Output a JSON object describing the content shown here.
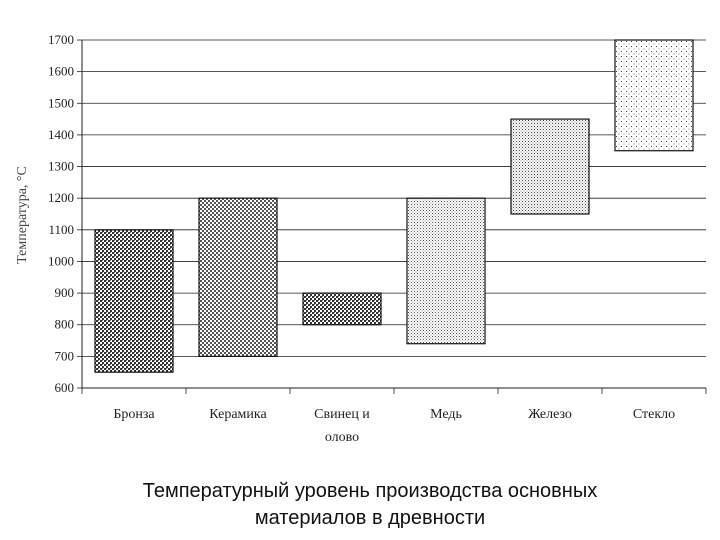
{
  "chart_data": {
    "type": "bar",
    "subtype": "floating-range",
    "ylabel": "Температура, °С",
    "ylim": [
      600,
      1700
    ],
    "ytick_step": 100,
    "yticks": [
      "600",
      "700",
      "800",
      "900",
      "1000",
      "1100",
      "1200",
      "1300",
      "1400",
      "1500",
      "1600",
      "1700"
    ],
    "grid": true,
    "categories": [
      {
        "label_lines": [
          "Бронза"
        ]
      },
      {
        "label_lines": [
          "Керамика"
        ]
      },
      {
        "label_lines": [
          "Свинец и",
          "олово"
        ]
      },
      {
        "label_lines": [
          "Медь"
        ]
      },
      {
        "label_lines": [
          "Железо"
        ]
      },
      {
        "label_lines": [
          "Стекло"
        ]
      }
    ],
    "ranges": [
      {
        "low": 650,
        "high": 1100,
        "pattern": "dense-cross"
      },
      {
        "low": 700,
        "high": 1200,
        "pattern": "cross"
      },
      {
        "low": 800,
        "high": 900,
        "pattern": "dense-cross"
      },
      {
        "low": 740,
        "high": 1200,
        "pattern": "dots"
      },
      {
        "low": 1150,
        "high": 1450,
        "pattern": "dots-dense"
      },
      {
        "low": 1350,
        "high": 1700,
        "pattern": "dots-sparse"
      }
    ]
  },
  "caption": {
    "line1": "Температурный уровень производства основных",
    "line2": "материалов в древности"
  }
}
